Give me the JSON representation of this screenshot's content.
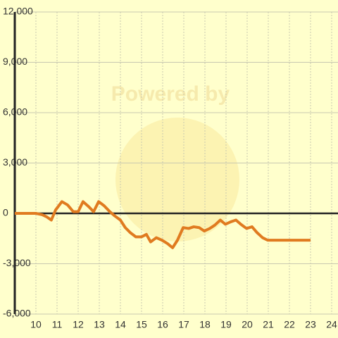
{
  "chart_data": {
    "type": "line",
    "watermark": "Powered by",
    "x": [
      9,
      10,
      10.3,
      10.5,
      10.73,
      10.93,
      11.23,
      11.5,
      11.77,
      12,
      12.23,
      12.5,
      12.73,
      12.97,
      13.23,
      13.5,
      13.73,
      14,
      14.23,
      14.47,
      14.73,
      15,
      15.23,
      15.43,
      15.7,
      15.97,
      16.23,
      16.47,
      16.7,
      16.97,
      17.23,
      17.47,
      17.73,
      17.97,
      18.23,
      18.47,
      18.73,
      18.97,
      19.23,
      19.47,
      19.7,
      19.97,
      20.23,
      20.47,
      20.73,
      20.97,
      23
    ],
    "series": [
      {
        "color": "#e07b20",
        "values": [
          0,
          0,
          -80,
          -200,
          -400,
          200,
          700,
          500,
          100,
          100,
          700,
          400,
          100,
          700,
          450,
          100,
          -150,
          -400,
          -850,
          -1150,
          -1400,
          -1400,
          -1250,
          -1700,
          -1450,
          -1600,
          -1800,
          -2050,
          -1600,
          -850,
          -900,
          -800,
          -850,
          -1050,
          -900,
          -700,
          -400,
          -650,
          -500,
          -400,
          -650,
          -900,
          -800,
          -1150,
          -1450,
          -1600,
          -1600
        ]
      }
    ],
    "xlim": [
      9,
      24.3
    ],
    "xticks": [
      10,
      11,
      12,
      13,
      14,
      15,
      16,
      17,
      18,
      19,
      20,
      21,
      22,
      23,
      24
    ],
    "ylim": [
      -6000,
      12000
    ],
    "yticks": [
      {
        "value": -6000,
        "label": "-6,000"
      },
      {
        "value": -3000,
        "label": "-3,000"
      },
      0,
      {
        "value": 3000,
        "label": "3,000"
      },
      {
        "value": 6000,
        "label": "6,000"
      },
      {
        "value": 9000,
        "label": "9,000"
      },
      {
        "value": 12000,
        "label": "12,000"
      }
    ],
    "grid": true
  }
}
